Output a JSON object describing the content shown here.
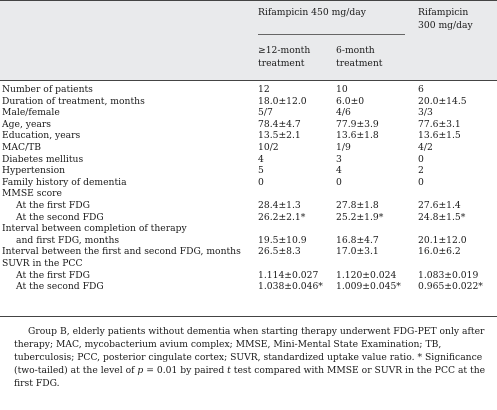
{
  "header": {
    "group_a": "Rifampicin 450 mg/day",
    "sub1_line1": "≥12-month",
    "sub1_line2": "treatment",
    "sub2_line1": "6-month",
    "sub2_line2": "treatment",
    "group_b_line1": "Rifampicin",
    "group_b_line2": "300 mg/day"
  },
  "rows": [
    {
      "label": "Number of patients",
      "c1": "12",
      "c2": "10",
      "c3": "6"
    },
    {
      "label": "Duration of treatment, months",
      "c1": "18.0±12.0",
      "c2": "6.0±0",
      "c3": "20.0±14.5"
    },
    {
      "label": "Male/female",
      "c1": "5/7",
      "c2": "4/6",
      "c3": "3/3"
    },
    {
      "label": "Age, years",
      "c1": "78.4±4.7",
      "c2": "77.9±3.9",
      "c3": "77.6±3.1"
    },
    {
      "label": "Education, years",
      "c1": "13.5±2.1",
      "c2": "13.6±1.8",
      "c3": "13.6±1.5"
    },
    {
      "label": "MAC/TB",
      "c1": "10/2",
      "c2": "1/9",
      "c3": "4/2"
    },
    {
      "label": "Diabetes mellitus",
      "c1": "4",
      "c2": "3",
      "c3": "0"
    },
    {
      "label": "Hypertension",
      "c1": "5",
      "c2": "4",
      "c3": "2"
    },
    {
      "label": "Family history of dementia",
      "c1": "0",
      "c2": "0",
      "c3": "0"
    },
    {
      "label": "MMSE score",
      "c1": "",
      "c2": "",
      "c3": ""
    },
    {
      "label": "At the first FDG",
      "c1": "28.4±1.3",
      "c2": "27.8±1.8",
      "c3": "27.6±1.4"
    },
    {
      "label": "At the second FDG",
      "c1": "26.2±2.1*",
      "c2": "25.2±1.9*",
      "c3": "24.8±1.5*"
    },
    {
      "label": "Interval between completion of therapy",
      "c1": "",
      "c2": "",
      "c3": ""
    },
    {
      "label": "and first FDG, months",
      "c1": "19.5±10.9",
      "c2": "16.8±4.7",
      "c3": "20.1±12.0"
    },
    {
      "label": "Interval between the first and second FDG, months",
      "c1": "26.5±8.3",
      "c2": "17.0±3.1",
      "c3": "16.0±6.2"
    },
    {
      "label": "SUVR in the PCC",
      "c1": "",
      "c2": "",
      "c3": ""
    },
    {
      "label": "At the first FDG",
      "c1": "1.114±0.027",
      "c2": "1.120±0.024",
      "c3": "1.083±0.019"
    },
    {
      "label": "At the second FDG",
      "c1": "1.038±0.046*",
      "c2": "1.009±0.045*",
      "c3": "0.965±0.022*"
    }
  ],
  "footnote": {
    "part1": "Group B, elderly patients without dementia when starting therapy underwent FDG-PET only after therapy; MAC, mycobacterium avium complex; MMSE, Mini-Mental State Examination; TB, tuberculosis; PCC, posterior cingulate cortex; SUVR, standardized uptake value ratio. * Significance (two-tailed) at the level of ",
    "p_symbol": "p",
    "part2": " = 0.01 by paired ",
    "t_symbol": "t",
    "part3": " test compared with MMSE or SUVR in the PCC at the first FDG."
  }
}
